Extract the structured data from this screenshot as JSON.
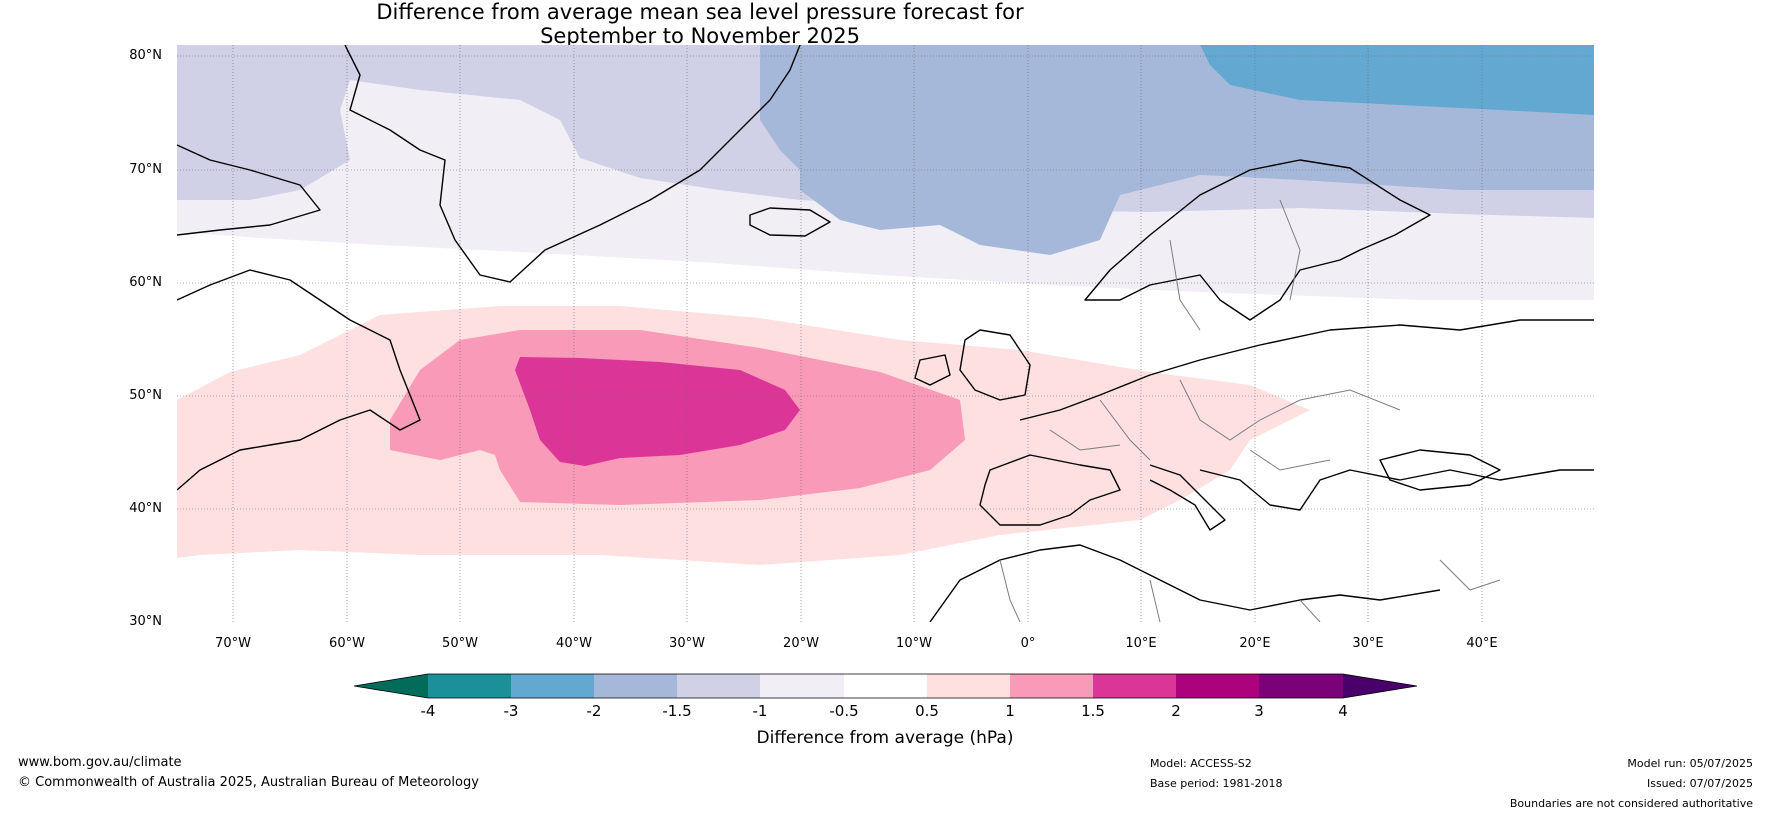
{
  "title": {
    "line1": "Difference from average mean sea level pressure forecast for",
    "line2": "September to November 2025"
  },
  "map": {
    "latitude_labels": [
      "80°N",
      "70°N",
      "60°N",
      "50°N",
      "40°N",
      "30°N"
    ],
    "longitude_labels": [
      "70°W",
      "60°W",
      "50°W",
      "40°W",
      "30°W",
      "20°W",
      "10°W",
      "0°",
      "10°E",
      "20°E",
      "30°E",
      "40°E"
    ],
    "regions": [
      {
        "name": "strong-positive-anomaly-central-atlantic",
        "level": "1.5 to 2",
        "color": "#dc3598"
      },
      {
        "name": "positive-anomaly-north-atlantic",
        "level": "1 to 1.5",
        "color": "#f89ab8"
      },
      {
        "name": "weak-positive-anomaly-atlantic-europe",
        "level": "0.5 to 1",
        "color": "#fde0df"
      },
      {
        "name": "negative-anomaly-barents-sea",
        "level": "-3 to -2",
        "color": "#63a8d0"
      },
      {
        "name": "negative-anomaly-norwegian-sea",
        "level": "-2 to -1.5",
        "color": "#a6b8da"
      },
      {
        "name": "negative-anomaly-greenland",
        "level": "-1.5 to -1",
        "color": "#d0d1e6"
      },
      {
        "name": "weak-negative-anomaly-arctic",
        "level": "-1 to -0.5",
        "color": "#f1eef6"
      }
    ]
  },
  "colorbar": {
    "ticks": [
      "-4",
      "-3",
      "-2",
      "-1.5",
      "-1",
      "-0.5",
      "0.5",
      "1",
      "1.5",
      "2",
      "3",
      "4"
    ],
    "colors": [
      "#016c59",
      "#1c9099",
      "#63a8d0",
      "#a6b8da",
      "#d0d1e6",
      "#f1eef6",
      "#ffffff",
      "#fde0df",
      "#f89ab8",
      "#dc3598",
      "#ae017e",
      "#7a0177",
      "#49006a"
    ],
    "label": "Difference from average (hPa)"
  },
  "footer": {
    "website": "www.bom.gov.au/climate",
    "copyright": "© Commonwealth of Australia 2025, Australian Bureau of Meteorology",
    "model": "Model: ACCESS-S2",
    "base_period": "Base period: 1981-2018",
    "model_run": "Model run: 05/07/2025",
    "issued": "Issued: 07/07/2025",
    "disclaimer": "Boundaries are not considered authoritative"
  }
}
